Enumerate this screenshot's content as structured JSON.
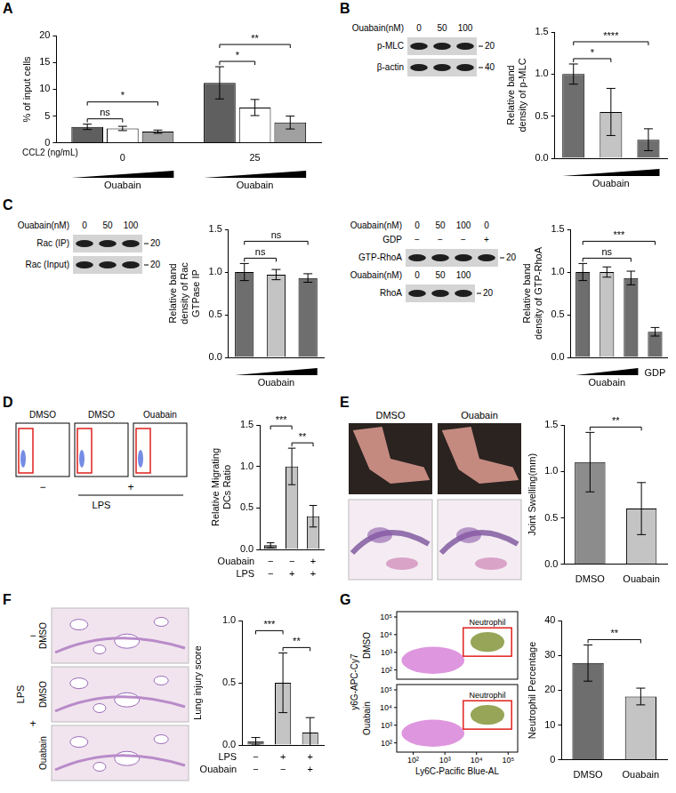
{
  "chart_data": [
    {
      "type": "bar",
      "ylabel": "% of input cells",
      "xlabel": "CCL2 (ng/mL)",
      "categories": [
        "0",
        "25"
      ],
      "series": [
        {
          "color": "#5f5f5f",
          "values": [
            3.0,
            11.2
          ],
          "errors": [
            0.5,
            3.0
          ]
        },
        {
          "color": "#ffffff",
          "values": [
            2.7,
            6.6
          ],
          "errors": [
            0.4,
            1.5
          ]
        },
        {
          "color": "#a0a0a0",
          "values": [
            2.1,
            3.8
          ],
          "errors": [
            0.3,
            1.2
          ]
        }
      ],
      "ylim": [
        0,
        20
      ],
      "yticks": [
        0,
        5,
        10,
        15,
        20
      ],
      "grid": false,
      "x_marks": [
        {
          "type": "wedge",
          "category": 0,
          "text": "Ouabain"
        },
        {
          "type": "wedge",
          "category": 1,
          "text": "Ouabain"
        }
      ],
      "annotations": [
        {
          "category": 0,
          "from": 0,
          "to": 1,
          "text": "ns"
        },
        {
          "category": 0,
          "from": 0,
          "to": 2,
          "text": "*"
        },
        {
          "category": 1,
          "from": 0,
          "to": 1,
          "text": "*"
        },
        {
          "category": 1,
          "from": 0,
          "to": 2,
          "text": "**"
        }
      ]
    },
    {
      "type": "bar",
      "ylabel": "Relative band density of p-MLC",
      "categories": [
        null,
        null,
        null
      ],
      "values": [
        1.0,
        0.55,
        0.22
      ],
      "errors": [
        0.12,
        0.28,
        0.13
      ],
      "colors": [
        "#6e6e6e",
        "#c4c4c4",
        "#6e6e6e"
      ],
      "ylim": [
        0,
        1.5
      ],
      "yticks": [
        {
          "value": 0,
          "label": "0.0"
        },
        {
          "value": 0.5,
          "label": "0.5"
        },
        {
          "value": 1,
          "label": "1.0"
        },
        {
          "value": 1.5,
          "label": "1.5"
        }
      ],
      "grid": false,
      "tick_labels": "y",
      "x_marks": [
        {
          "type": "wedge",
          "from": 0,
          "to": 2,
          "text": "Ouabain"
        }
      ],
      "annotations": [
        {
          "from": 0,
          "to": 1,
          "text": "*"
        },
        {
          "from": 0,
          "to": 2,
          "text": "****"
        }
      ]
    },
    {
      "type": "bar",
      "ylabel": "Relative band density of Rac GTPase IP",
      "categories": [
        null,
        null,
        null
      ],
      "values": [
        1.0,
        0.97,
        0.93
      ],
      "errors": [
        0.1,
        0.06,
        0.05
      ],
      "colors": [
        "#6e6e6e",
        "#c4c4c4",
        "#6e6e6e"
      ],
      "ylim": [
        0,
        1.5
      ],
      "yticks": [
        {
          "value": 0,
          "label": "0.0"
        },
        {
          "value": 0.5,
          "label": "0.5"
        },
        {
          "value": 1,
          "label": "1.0"
        },
        {
          "value": 1.5,
          "label": "1.5"
        }
      ],
      "grid": false,
      "tick_labels": "y",
      "x_marks": [
        {
          "type": "wedge",
          "from": 0,
          "to": 2,
          "text": "Ouabain"
        }
      ],
      "annotations": [
        {
          "from": 0,
          "to": 1,
          "text": "ns"
        },
        {
          "from": 0,
          "to": 2,
          "text": "ns"
        }
      ]
    },
    {
      "type": "bar",
      "ylabel": "Relative band density of GTP-RhoA",
      "categories": [
        null,
        null,
        null,
        null
      ],
      "values": [
        1.0,
        1.0,
        0.93,
        0.3
      ],
      "errors": [
        0.1,
        0.06,
        0.08,
        0.05
      ],
      "colors": [
        "#6e6e6e",
        "#c4c4c4",
        "#6e6e6e",
        "#6e6e6e"
      ],
      "ylim": [
        0,
        1.5
      ],
      "yticks": [
        {
          "value": 0,
          "label": "0.0"
        },
        {
          "value": 0.5,
          "label": "0.5"
        },
        {
          "value": 1,
          "label": "1.0"
        },
        {
          "value": 1.5,
          "label": "1.5"
        }
      ],
      "grid": false,
      "tick_labels": "y",
      "x_marks": [
        {
          "type": "wedge",
          "from": 0,
          "to": 2,
          "text": "Ouabain"
        },
        {
          "type": "text",
          "at": 3,
          "text": "GDP"
        }
      ],
      "annotations": [
        {
          "from": 0,
          "to": 2,
          "text": "ns"
        },
        {
          "from": 0,
          "to": 3,
          "text": "***"
        }
      ]
    },
    {
      "type": "bar",
      "ylabel": "Relative Migrating DCs Ratio",
      "categories": [
        null,
        null,
        null
      ],
      "values": [
        0.05,
        1.0,
        0.4
      ],
      "errors": [
        0.03,
        0.22,
        0.13
      ],
      "colors": [
        "#6e6e6e",
        "#c4c4c4",
        "#c4c4c4"
      ],
      "ylim": [
        0,
        1.5
      ],
      "yticks": [
        {
          "value": 0,
          "label": "0.0"
        },
        {
          "value": 0.5,
          "label": "0.5"
        },
        {
          "value": 1,
          "label": "1.0"
        },
        {
          "value": 1.5,
          "label": "1.5"
        }
      ],
      "grid": false,
      "tick_labels": "y",
      "x_table": [
        {
          "label": "Ouabain",
          "values": [
            "−",
            "−",
            "+"
          ]
        },
        {
          "label": "LPS",
          "values": [
            "−",
            "+",
            "+"
          ]
        }
      ],
      "annotations": [
        {
          "from": 1,
          "to": 2,
          "text": "**"
        },
        {
          "from": 0,
          "to": 1,
          "text": "***"
        }
      ]
    },
    {
      "type": "bar",
      "ylabel": "Joint Swelling(mm)",
      "categories": [
        "DMSO",
        "Ouabain"
      ],
      "values": [
        1.1,
        0.6
      ],
      "errors": [
        0.32,
        0.28
      ],
      "colors": [
        "#8c8c8c",
        "#c4c4c4"
      ],
      "ylim": [
        0,
        1.5
      ],
      "yticks": [
        {
          "value": 0,
          "label": "0.0"
        },
        {
          "value": 0.5,
          "label": "0.5"
        },
        {
          "value": 1,
          "label": "1.0"
        },
        {
          "value": 1.5,
          "label": "1.5"
        }
      ],
      "grid": false,
      "annotations": [
        {
          "from": 0,
          "to": 1,
          "text": "**"
        }
      ]
    },
    {
      "type": "bar",
      "ylabel": "Lung injury score",
      "categories": [
        null,
        null,
        null
      ],
      "values": [
        0.03,
        0.5,
        0.1
      ],
      "errors": [
        0.03,
        0.24,
        0.12
      ],
      "colors": [
        "#6e6e6e",
        "#c4c4c4",
        "#c4c4c4"
      ],
      "ylim": [
        0,
        1
      ],
      "yticks": [
        {
          "value": 0,
          "label": "0.0"
        },
        {
          "value": 0.5,
          "label": "0.5"
        },
        {
          "value": 1,
          "label": "1.0"
        }
      ],
      "grid": false,
      "tick_labels": "y",
      "x_table": [
        {
          "label": "LPS",
          "values": [
            "−",
            "+",
            "+"
          ]
        },
        {
          "label": "Ouabain",
          "values": [
            "−",
            "−",
            "+"
          ]
        }
      ],
      "annotations": [
        {
          "from": 1,
          "to": 2,
          "text": "**"
        },
        {
          "from": 0,
          "to": 1,
          "text": "***"
        }
      ]
    },
    {
      "type": "bar",
      "ylabel": "Neutrophil Percentage",
      "categories": [
        "DMSO",
        "Ouabain"
      ],
      "values": [
        27.8,
        18.2
      ],
      "errors": [
        5.2,
        2.4
      ],
      "colors": [
        "#6e6e6e",
        "#c4c4c4"
      ],
      "ylim": [
        0,
        40
      ],
      "yticks": [
        0,
        10,
        20,
        30,
        40
      ],
      "grid": false,
      "annotations": [
        {
          "from": 0,
          "to": 1,
          "text": "**"
        }
      ]
    }
  ],
  "figure": {
    "panels": [
      {
        "letter": "A"
      },
      {
        "letter": "B",
        "blots": [
          [
            {
              "header": "Ouabain(nM)",
              "lanes": [
                "0",
                "50",
                "100"
              ]
            },
            {
              "band": "p-MLC",
              "mw": "20"
            },
            {
              "band": "β-actin",
              "mw": "40"
            }
          ]
        ]
      },
      {
        "letter": "C",
        "blots": [
          [
            {
              "header": "Ouabain(nM)",
              "lanes": [
                "0",
                "50",
                "100"
              ]
            },
            {
              "band": "Rac (IP)",
              "mw": "20"
            },
            {
              "band": "Rac (Input)",
              "mw": "20"
            }
          ],
          [
            {
              "header": "Ouabain(nM)",
              "lanes": [
                "0",
                "50",
                "100",
                "0"
              ]
            },
            {
              "header": "GDP",
              "lanes": [
                "−",
                "−",
                "−",
                "+"
              ]
            },
            {
              "band": "GTP-RhoA",
              "mw": "20"
            },
            {
              "header": "Ouabain(nM)",
              "lanes": [
                "0",
                "50",
                "100"
              ]
            },
            {
              "band": "RhoA",
              "mw": "20"
            }
          ]
        ]
      },
      {
        "letter": "D",
        "flow": {
          "titles": [
            "DMSO",
            "DMSO",
            "Ouabain"
          ],
          "groups": [
            {
              "text": "−",
              "from": 0,
              "to": 0
            },
            {
              "text": "+",
              "from": 1,
              "to": 2
            }
          ],
          "group_label": "LPS"
        }
      },
      {
        "letter": "E",
        "photos": {
          "titles": [
            "DMSO",
            "Ouabain"
          ]
        }
      },
      {
        "letter": "F",
        "histology": {
          "rows": [
            "DMSO",
            "DMSO",
            "Ouabain"
          ],
          "groups": [
            {
              "text": "−",
              "from": 0,
              "to": 0
            },
            {
              "text": "+",
              "from": 1,
              "to": 2
            }
          ],
          "group_label": "LPS"
        }
      },
      {
        "letter": "G",
        "flow": {
          "rows": [
            "DMSO",
            "Ouabain"
          ],
          "gate": "Neutrophil",
          "xlabel": "Ly6C-Pacific Blue-AL",
          "ylabel": "y6G-APC-Cy7",
          "xlim": [
            30,
            200000
          ],
          "ylim": [
            30,
            200000
          ],
          "xticks": [
            {
              "value": 100,
              "label": "10²"
            },
            {
              "value": 1000,
              "label": "10³"
            },
            {
              "value": 10000,
              "label": "10⁴"
            },
            {
              "value": 100000,
              "label": "10⁵"
            }
          ],
          "yticks": [
            {
              "value": 100,
              "label": "10²"
            },
            {
              "value": 1000,
              "label": "10³"
            },
            {
              "value": 10000,
              "label": "10⁴"
            },
            {
              "value": 100000,
              "label": "10⁵"
            }
          ]
        }
      }
    ]
  }
}
